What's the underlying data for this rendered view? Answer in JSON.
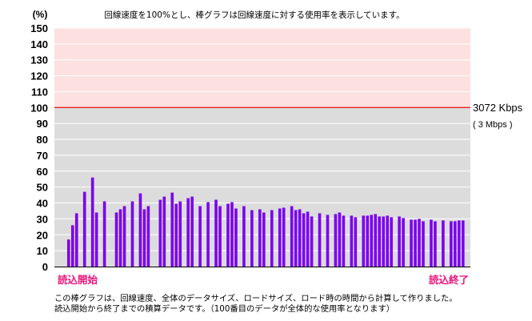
{
  "chart_data": {
    "type": "bar",
    "title": "回線速度を100%とし、棒グラフは回線速度に対する使用率を表示しています。",
    "yunit": "(%)",
    "ylim": [
      0,
      150
    ],
    "yticks": [
      0,
      10,
      20,
      30,
      40,
      50,
      60,
      70,
      80,
      90,
      100,
      110,
      120,
      130,
      140,
      150
    ],
    "reference": {
      "value": 100,
      "label": "3072 Kbps",
      "sublabel": "( 3 Mbps )"
    },
    "start_label": "読込開始",
    "end_label": "読込終了",
    "series_color": "#7b00ee",
    "values": [
      17,
      26,
      33.5,
      null,
      47,
      null,
      56,
      34,
      null,
      41,
      null,
      null,
      34,
      36,
      38,
      null,
      41,
      null,
      46,
      36,
      38,
      null,
      null,
      42,
      44,
      null,
      46.5,
      39.5,
      41,
      null,
      43,
      44,
      null,
      38,
      null,
      40.5,
      null,
      42,
      38,
      null,
      39.5,
      40.5,
      36.5,
      null,
      38,
      null,
      35.5,
      null,
      36,
      34,
      null,
      35.5,
      null,
      36.5,
      37,
      null,
      38,
      35.5,
      36,
      33.5,
      34.5,
      31.5,
      null,
      33.5,
      null,
      32.5,
      null,
      33,
      34,
      32,
      null,
      32,
      31,
      null,
      32,
      32,
      32.5,
      33,
      31.5,
      31.5,
      32,
      31,
      null,
      31.5,
      30.5,
      null,
      29.5,
      29.5,
      30,
      28.5,
      null,
      29.5,
      28.5,
      null,
      29,
      null,
      28.5,
      28.5,
      29,
      29
    ]
  },
  "footer": {
    "line1": "この棒グラフは、回線速度、全体のデータサイズ、ロードサイズ、ロード時の時間から計算して作りました。",
    "line2": "読込開始から終了までの積算データです。（100番目のデータが全体的な使用率となります）"
  }
}
